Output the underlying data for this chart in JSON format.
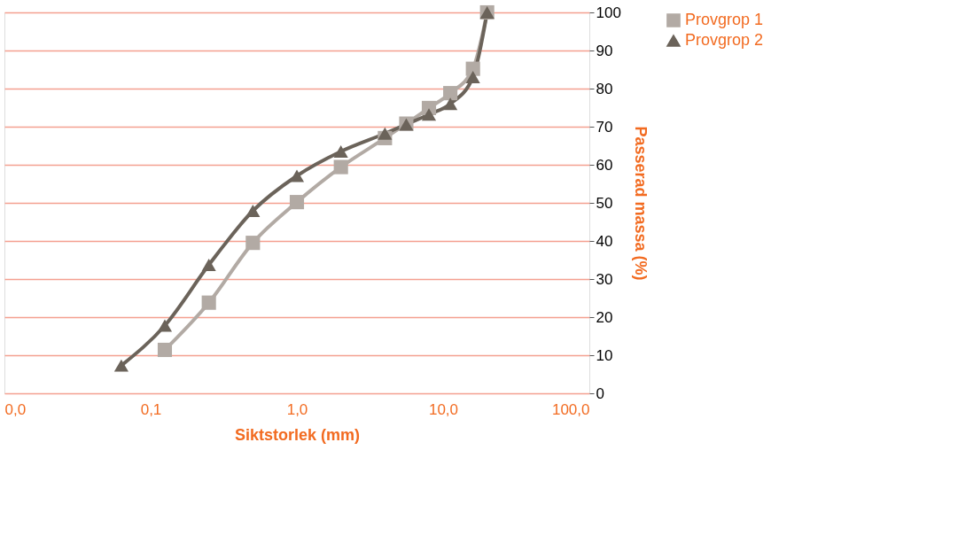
{
  "chart_data": {
    "type": "line",
    "xlabel": "Siktstorlek (mm)",
    "ylabel": "Passerad massa (%)",
    "log": "x",
    "grid": "y",
    "legend": "right",
    "line_style": "solid",
    "xlim": [
      0.01,
      100
    ],
    "xticks": [
      {
        "value": 0.01,
        "label": "0,0"
      },
      {
        "value": 0.1,
        "label": "0,1"
      },
      {
        "value": 1,
        "label": "1,0"
      },
      {
        "value": 10,
        "label": "10,0"
      },
      {
        "value": 100,
        "label": "100,0"
      }
    ],
    "ylim": [
      0,
      100
    ],
    "yticks": [
      0,
      10,
      20,
      30,
      40,
      50,
      60,
      70,
      80,
      90,
      100
    ],
    "series": [
      {
        "name": "Provgrop 1",
        "color": "#b2aaa4",
        "marker": "square",
        "x": [
          0.125,
          0.25,
          0.5,
          1,
          2,
          4,
          5.6,
          8,
          11.2,
          16,
          20
        ],
        "values": [
          11.4,
          23.8,
          39.5,
          50.2,
          59.4,
          67,
          70.8,
          74.9,
          78.8,
          85.2,
          100
        ]
      },
      {
        "name": "Provgrop 2",
        "color": "#6b635a",
        "marker": "triangle",
        "x": [
          0.063,
          0.125,
          0.25,
          0.5,
          1,
          2,
          4,
          5.6,
          8,
          11.2,
          16,
          20
        ],
        "values": [
          7.3,
          17.8,
          33.7,
          47.9,
          57.1,
          63.5,
          68.2,
          70.6,
          73.2,
          76,
          83,
          100
        ]
      }
    ]
  }
}
